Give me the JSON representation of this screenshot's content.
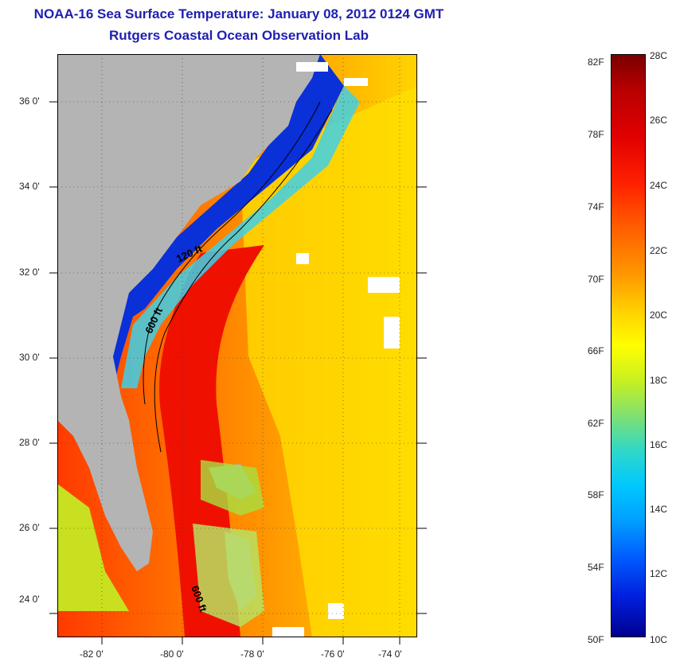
{
  "title": {
    "line1": "NOAA-16 Sea Surface Temperature:  January 08, 2012 0124 GMT",
    "line2": "Rutgers Coastal Ocean Observation Lab"
  },
  "map": {
    "lat_labels": [
      "36 0'",
      "34 0'",
      "32 0'",
      "30 0'",
      "28 0'",
      "26 0'",
      "24 0'"
    ],
    "lon_labels": [
      "-82 0'",
      "-80 0'",
      "-78 0'",
      "-76 0'",
      "-74 0'"
    ],
    "contour_labels": [
      "120 ft",
      "600 ft",
      "600 ft"
    ],
    "colors": {
      "land": "#b4b4b4",
      "cloud": "#ffffff",
      "warm": "#f02000",
      "cool": "#0030d0"
    }
  },
  "colorbar": {
    "fahrenheit": [
      "82F",
      "78F",
      "74F",
      "70F",
      "66F",
      "62F",
      "58F",
      "54F",
      "50F"
    ],
    "celsius": [
      "28C",
      "26C",
      "24C",
      "22C",
      "20C",
      "18C",
      "16C",
      "14C",
      "12C",
      "10C"
    ]
  }
}
